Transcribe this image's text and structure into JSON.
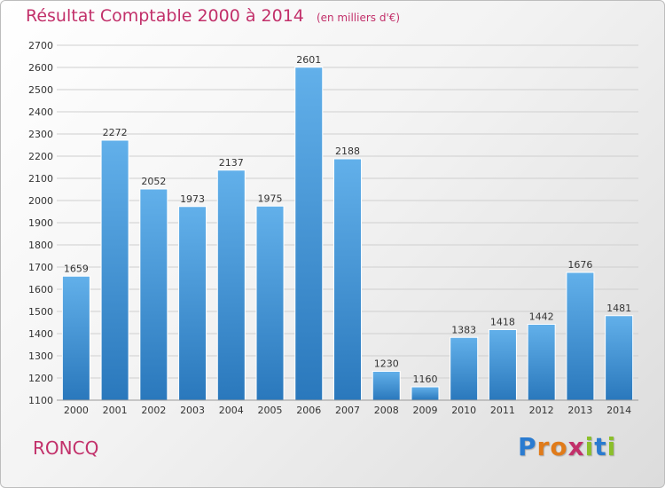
{
  "header": {
    "title": "Résultat Comptable 2000 à 2014",
    "unit_note": "(en milliers d'€)"
  },
  "footer": {
    "commune": "RONCQ",
    "logo_letters": [
      "P",
      "r",
      "o",
      "x",
      "i",
      "t",
      "i"
    ],
    "logo_colors": [
      "#2a7bd0",
      "#e07b1a",
      "#e07b1a",
      "#c2306a",
      "#8bbf2a",
      "#2a7bd0",
      "#8bbf2a"
    ]
  },
  "chart_data": {
    "type": "bar",
    "categories": [
      "2000",
      "2001",
      "2002",
      "2003",
      "2004",
      "2005",
      "2006",
      "2007",
      "2008",
      "2009",
      "2010",
      "2011",
      "2012",
      "2013",
      "2014"
    ],
    "values": [
      1659,
      2272,
      2052,
      1973,
      2137,
      1975,
      2601,
      2188,
      1230,
      1160,
      1383,
      1418,
      1442,
      1676,
      1481
    ],
    "data_labels": [
      "1659",
      "2272",
      "2052",
      "1973",
      "2137",
      "1975",
      "2601",
      "2188",
      "1230",
      "1160",
      "1383",
      "1418",
      "1442",
      "1676",
      "1481"
    ],
    "yticks": [
      "1100",
      "1200",
      "1300",
      "1400",
      "1500",
      "1600",
      "1700",
      "1800",
      "1900",
      "2000",
      "2100",
      "2200",
      "2300",
      "2400",
      "2500",
      "2600",
      "2700"
    ],
    "ylim": [
      1100,
      2700
    ],
    "grid": true,
    "bar_color_top": "#62b0ea",
    "bar_color_bottom": "#2a78bc"
  }
}
